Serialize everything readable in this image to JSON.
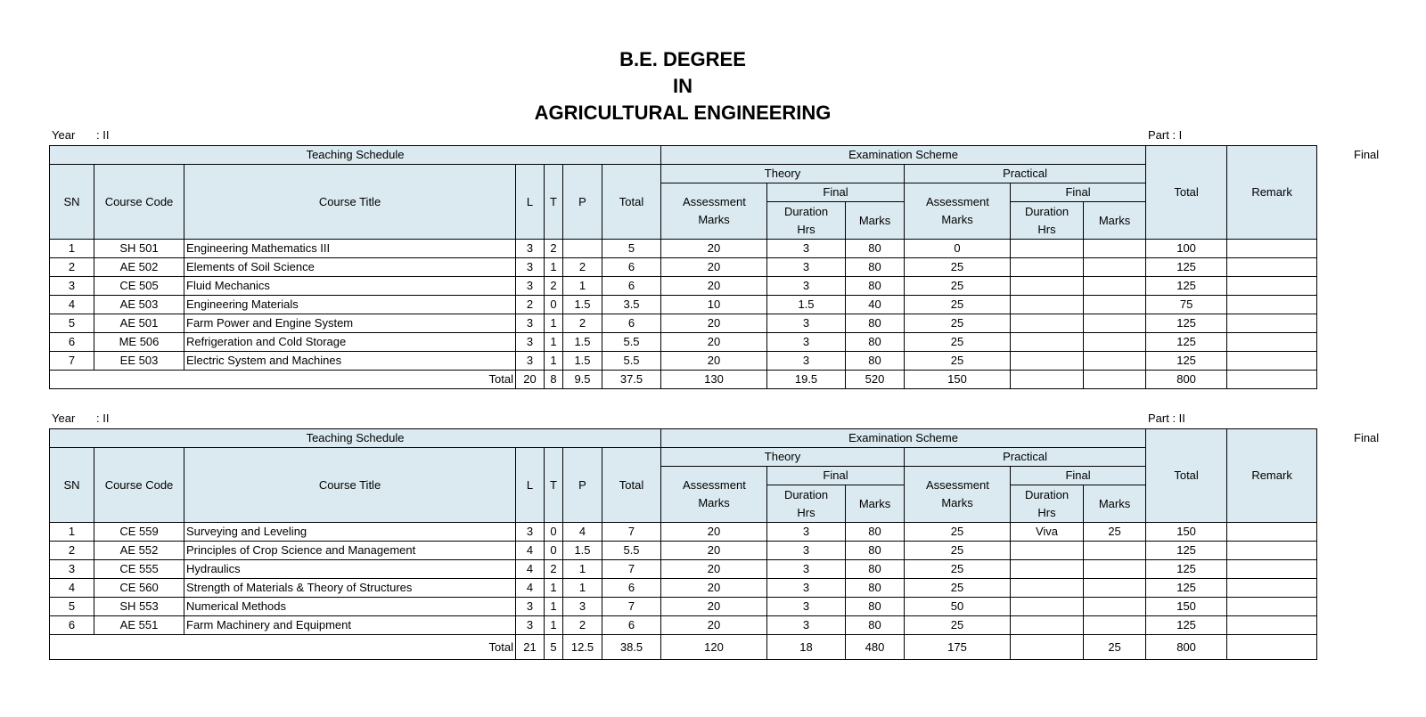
{
  "title": [
    "B.E. DEGREE",
    "IN",
    "AGRICULTURAL  ENGINEERING"
  ],
  "headers": {
    "teaching": "Teaching  Schedule",
    "exam": "Examination Scheme",
    "theory": "Theory",
    "practical": "Practical",
    "final": "Final",
    "total": "Total",
    "remark": "Remark",
    "sn": "SN",
    "code": "Course Code",
    "course_title": "Course Title",
    "l": "L",
    "t": "T",
    "p": "P",
    "assessment": "Assessment Marks",
    "duration": "Duration Hrs",
    "marks": "Marks"
  },
  "tables": [
    {
      "year_label": "Year",
      "year": ": II",
      "part": "Part : I",
      "side_note": "Final",
      "rows": [
        [
          1,
          "SH 501",
          "Engineering Mathematics III",
          3,
          2,
          null,
          5,
          20,
          3,
          80,
          0,
          null,
          null,
          100,
          null
        ],
        [
          2,
          "AE 502",
          "Elements of Soil Science",
          3,
          1,
          2,
          6,
          20,
          3,
          80,
          25,
          null,
          null,
          125,
          null
        ],
        [
          3,
          "CE 505",
          "Fluid Mechanics",
          3,
          2,
          1,
          6,
          20,
          3,
          80,
          25,
          null,
          null,
          125,
          null
        ],
        [
          4,
          "AE 503",
          "Engineering Materials",
          2,
          0,
          1.5,
          3.5,
          10,
          1.5,
          40,
          25,
          null,
          null,
          75,
          null
        ],
        [
          5,
          "AE 501",
          "Farm Power and Engine System",
          3,
          1,
          2,
          6,
          20,
          3,
          80,
          25,
          null,
          null,
          125,
          null
        ],
        [
          6,
          "ME 506",
          "Refrigeration and Cold Storage",
          3,
          1,
          1.5,
          5.5,
          20,
          3,
          80,
          25,
          null,
          null,
          125,
          null
        ],
        [
          7,
          "EE 503",
          "Electric System and  Machines",
          3,
          1,
          1.5,
          5.5,
          20,
          3,
          80,
          25,
          null,
          null,
          125,
          null
        ]
      ],
      "total": {
        "label": "Total",
        "values": [
          20,
          8,
          9.5,
          37.5,
          130,
          19.5,
          520,
          150,
          null,
          null,
          800,
          null
        ]
      }
    },
    {
      "year_label": "Year",
      "year": ": II",
      "part": "Part : II",
      "side_note": "Final",
      "rows": [
        [
          1,
          "CE 559",
          "Surveying and Leveling",
          3,
          0,
          4,
          7,
          20,
          3,
          80,
          25,
          "Viva",
          25,
          150,
          null
        ],
        [
          2,
          "AE 552",
          "Principles of Crop Science and Management",
          4,
          0,
          1.5,
          5.5,
          20,
          3,
          80,
          25,
          null,
          null,
          125,
          null
        ],
        [
          3,
          "CE 555",
          "Hydraulics",
          4,
          2,
          1,
          7,
          20,
          3,
          80,
          25,
          null,
          null,
          125,
          null
        ],
        [
          4,
          "CE 560",
          "Strength of Materials & Theory of Structures",
          4,
          1,
          1,
          6,
          20,
          3,
          80,
          25,
          null,
          null,
          125,
          null
        ],
        [
          5,
          "SH 553",
          "Numerical Methods",
          3,
          1,
          3,
          7,
          20,
          3,
          80,
          50,
          null,
          null,
          150,
          null
        ],
        [
          6,
          "AE 551",
          "Farm Machinery and Equipment",
          3,
          1,
          2,
          6,
          20,
          3,
          80,
          25,
          null,
          null,
          125,
          null
        ]
      ],
      "total": {
        "label": "Total",
        "values": [
          21,
          5,
          12.5,
          38.5,
          120,
          18,
          480,
          175,
          null,
          25,
          800,
          null
        ]
      }
    }
  ]
}
